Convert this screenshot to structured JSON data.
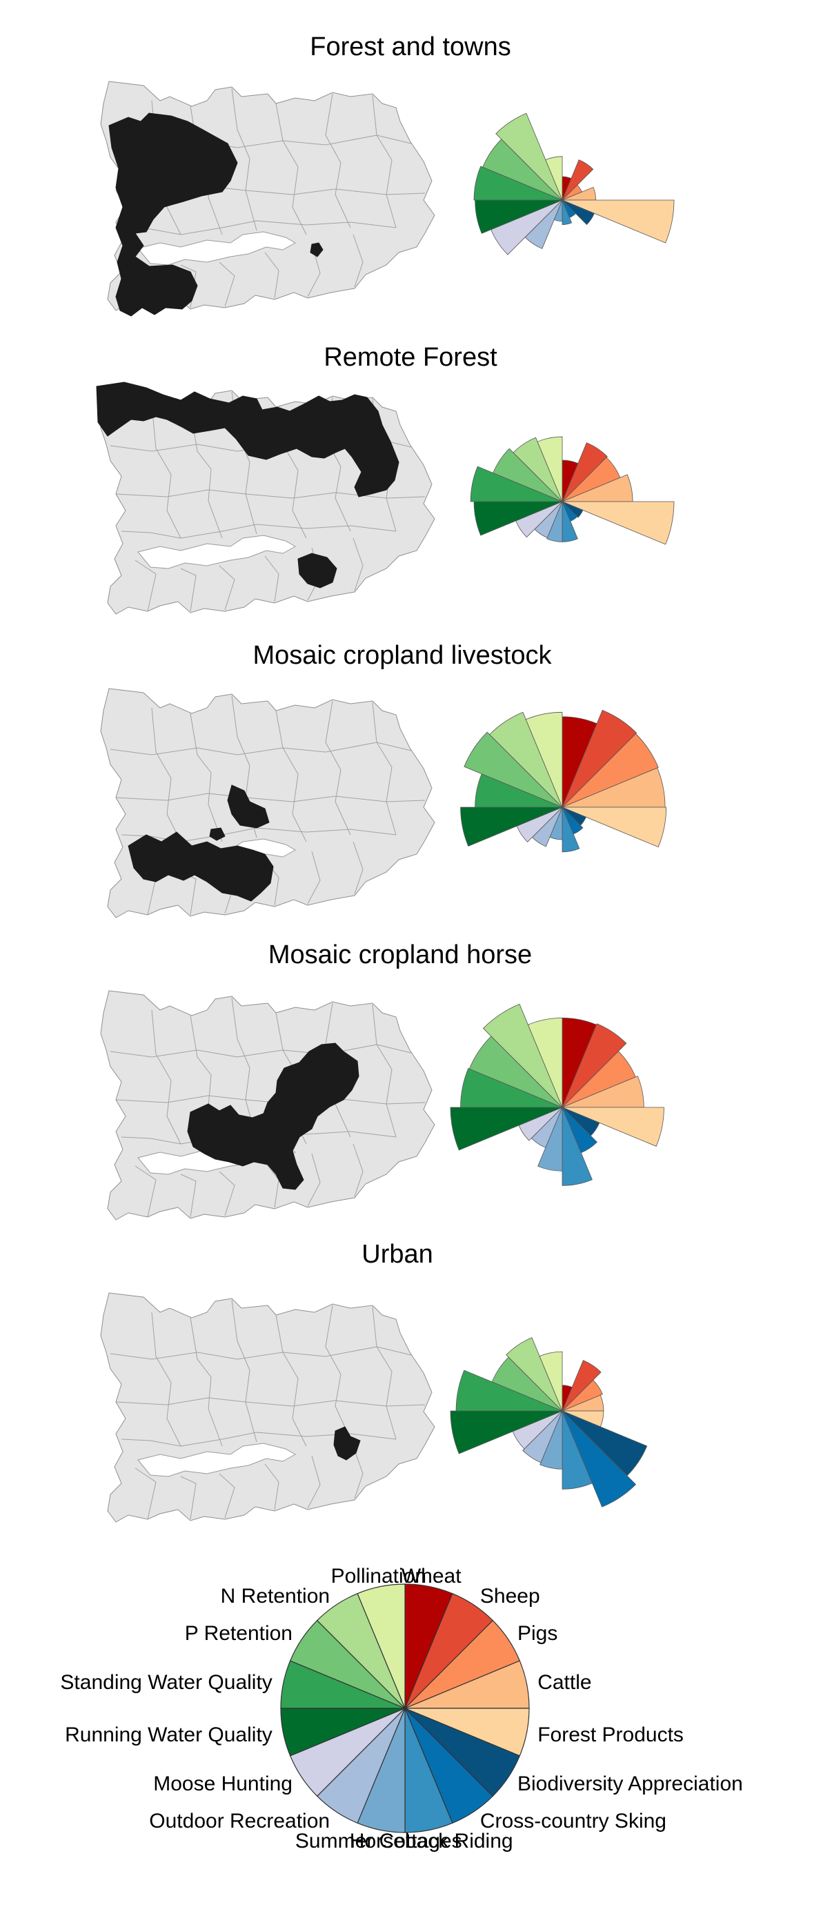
{
  "figure": {
    "legend_labels": [
      "Wheat",
      "Sheep",
      "Pigs",
      "Cattle",
      "Forest Products",
      "Biodiversity Appreciation",
      "Cross-country Sking",
      "Horseback Riding",
      "Summer Cottages",
      "Outdoor Recreation",
      "Moose Hunting",
      "Running Water Quality",
      "Standing Water Quality",
      "P Retention",
      "N Retention",
      "Pollination"
    ],
    "colors": [
      "#b30000",
      "#e34a33",
      "#fc8d59",
      "#fdbb84",
      "#fdd49e",
      "#08517f",
      "#0570b0",
      "#3690c0",
      "#74a9cf",
      "#a6bddb",
      "#d0d1e6",
      "#006d2c",
      "#31a354",
      "#74c476",
      "#addd8e",
      "#d9f0a3"
    ]
  },
  "chart_data": [
    {
      "type": "polar-area",
      "title": "Forest and towns",
      "values": [
        0.21,
        0.39,
        0.19,
        0.3,
        1.0,
        0.31,
        0.17,
        0.22,
        0.19,
        0.47,
        0.69,
        0.78,
        0.79,
        0.77,
        0.84,
        0.39
      ]
    },
    {
      "type": "polar-area",
      "title": "Remote Forest",
      "values": [
        0.37,
        0.57,
        0.56,
        0.63,
        1.0,
        0.2,
        0.19,
        0.36,
        0.36,
        0.35,
        0.45,
        0.79,
        0.82,
        0.67,
        0.62,
        0.58
      ]
    },
    {
      "type": "polar-area",
      "title": "Mosaic cropland livestock",
      "values": [
        0.81,
        0.94,
        0.93,
        0.92,
        0.93,
        0.23,
        0.26,
        0.4,
        0.29,
        0.38,
        0.44,
        0.91,
        0.78,
        0.95,
        0.92,
        0.85
      ]
    },
    {
      "type": "polar-area",
      "title": "Mosaic cropland horse",
      "values": [
        0.8,
        0.81,
        0.71,
        0.73,
        0.91,
        0.36,
        0.44,
        0.7,
        0.57,
        0.39,
        0.42,
        1.0,
        0.91,
        0.9,
        1.0,
        0.8
      ]
    },
    {
      "type": "polar-area",
      "title": "Urban",
      "values": [
        0.23,
        0.49,
        0.39,
        0.37,
        0.37,
        0.82,
        0.93,
        0.7,
        0.52,
        0.5,
        0.48,
        1.0,
        0.95,
        0.68,
        0.71,
        0.53
      ]
    }
  ]
}
